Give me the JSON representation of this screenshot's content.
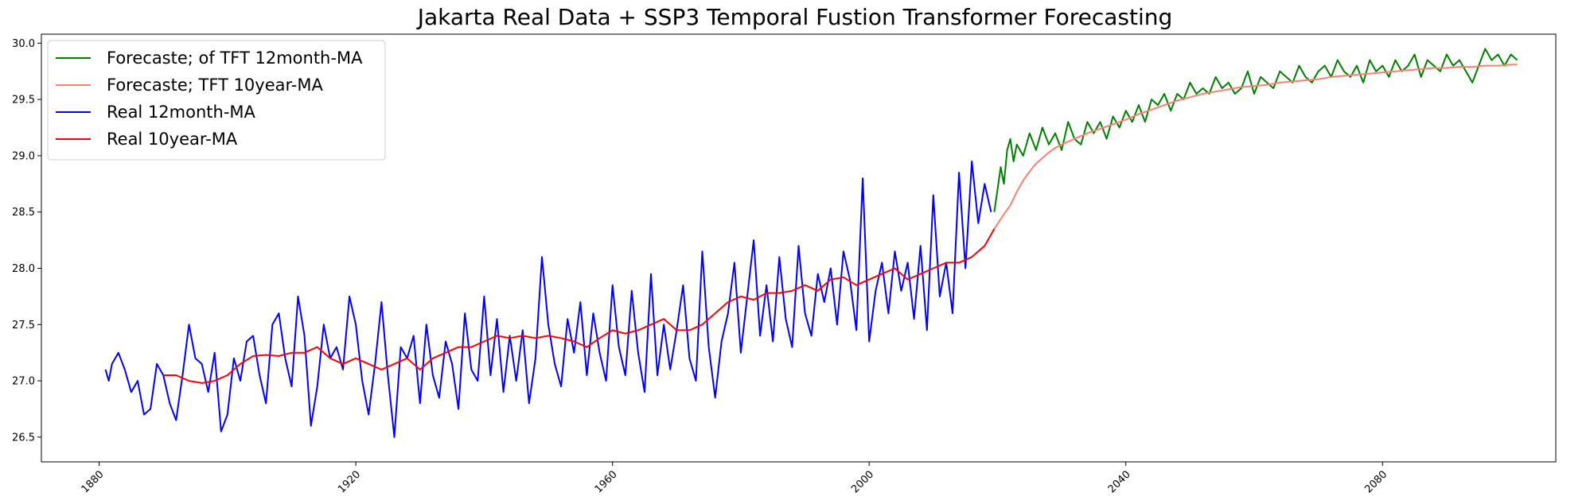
{
  "chart_data": {
    "type": "line",
    "title": "Jakarta Real Data + SSP3 Temporal Fustion Transformer Forecasting",
    "xlabel": "",
    "ylabel": "",
    "xlim": [
      1871,
      2107
    ],
    "ylim": [
      26.28,
      30.08
    ],
    "xticks": [
      1880,
      1920,
      1960,
      2000,
      2040,
      2080
    ],
    "xtick_labels": [
      "1880",
      "1920",
      "1960",
      "2000",
      "2040",
      "2080"
    ],
    "yticks": [
      26.5,
      27.0,
      27.5,
      28.0,
      28.5,
      29.0,
      29.5,
      30.0
    ],
    "ytick_labels": [
      "26.5",
      "27.0",
      "27.5",
      "28.0",
      "28.5",
      "29.0",
      "29.5",
      "30.0"
    ],
    "grid": false,
    "legend_position": "upper-left",
    "series": [
      {
        "name": "Forecaste; of TFT 12month-MA",
        "color": "#008000",
        "x": [
          2019.5,
          2020.0,
          2020.5,
          2021.0,
          2021.5,
          2022.0,
          2022.5,
          2023.0,
          2024.0,
          2025.0,
          2026.0,
          2027.0,
          2028.0,
          2029.0,
          2030.0,
          2031.0,
          2032.0,
          2033.0,
          2034.0,
          2035.0,
          2036.0,
          2037.0,
          2038.0,
          2039.0,
          2040.0,
          2041.0,
          2042.0,
          2043.0,
          2044.0,
          2045.0,
          2046.0,
          2047.0,
          2048.0,
          2049.0,
          2050.0,
          2051.0,
          2052.0,
          2053.0,
          2054.0,
          2055.0,
          2056.0,
          2057.0,
          2058.0,
          2059.0,
          2060.0,
          2061.0,
          2062.0,
          2063.0,
          2064.0,
          2065.0,
          2066.0,
          2067.0,
          2068.0,
          2069.0,
          2070.0,
          2071.0,
          2072.0,
          2073.0,
          2074.0,
          2075.0,
          2076.0,
          2077.0,
          2078.0,
          2079.0,
          2080.0,
          2081.0,
          2082.0,
          2083.0,
          2084.0,
          2085.0,
          2086.0,
          2087.0,
          2088.0,
          2089.0,
          2090.0,
          2091.0,
          2092.0,
          2093.0,
          2094.0,
          2095.0,
          2096.0,
          2097.0,
          2098.0,
          2099.0,
          2100.0,
          2101.0
        ],
        "y": [
          28.5,
          28.7,
          28.9,
          28.75,
          29.05,
          29.15,
          28.95,
          29.1,
          29.0,
          29.2,
          29.05,
          29.25,
          29.1,
          29.2,
          29.05,
          29.3,
          29.15,
          29.1,
          29.3,
          29.2,
          29.3,
          29.15,
          29.35,
          29.25,
          29.4,
          29.3,
          29.45,
          29.3,
          29.5,
          29.45,
          29.55,
          29.4,
          29.55,
          29.5,
          29.65,
          29.55,
          29.6,
          29.55,
          29.7,
          29.6,
          29.65,
          29.55,
          29.6,
          29.75,
          29.55,
          29.7,
          29.65,
          29.6,
          29.75,
          29.7,
          29.65,
          29.8,
          29.7,
          29.65,
          29.75,
          29.8,
          29.7,
          29.85,
          29.75,
          29.7,
          29.8,
          29.65,
          29.85,
          29.75,
          29.8,
          29.7,
          29.85,
          29.75,
          29.8,
          29.9,
          29.7,
          29.85,
          29.8,
          29.75,
          29.9,
          29.8,
          29.85,
          29.75,
          29.65,
          29.8,
          29.95,
          29.85,
          29.9,
          29.8,
          29.9,
          29.85
        ]
      },
      {
        "name": "Forecaste; TFT 10year-MA",
        "color": "#fa8072",
        "x": [
          2019.5,
          2021.0,
          2022.0,
          2023.0,
          2024.0,
          2025.0,
          2026.0,
          2027.0,
          2028.0,
          2029.0,
          2030.0,
          2032.0,
          2034.0,
          2036.0,
          2038.0,
          2040.0,
          2042.0,
          2044.0,
          2046.0,
          2048.0,
          2050.0,
          2052.0,
          2054.0,
          2056.0,
          2058.0,
          2060.0,
          2062.0,
          2064.0,
          2066.0,
          2068.0,
          2070.0,
          2072.0,
          2074.0,
          2076.0,
          2078.0,
          2080.0,
          2082.0,
          2084.0,
          2086.0,
          2088.0,
          2090.0,
          2092.0,
          2094.0,
          2096.0,
          2098.0,
          2100.0,
          2101.0
        ],
        "y": [
          28.35,
          28.48,
          28.56,
          28.68,
          28.78,
          28.86,
          28.93,
          28.98,
          29.03,
          29.07,
          29.1,
          29.15,
          29.2,
          29.24,
          29.28,
          29.32,
          29.37,
          29.41,
          29.45,
          29.49,
          29.52,
          29.55,
          29.57,
          29.59,
          29.61,
          29.62,
          29.63,
          29.65,
          29.66,
          29.67,
          29.68,
          29.7,
          29.71,
          29.72,
          29.73,
          29.74,
          29.75,
          29.76,
          29.77,
          29.78,
          29.78,
          29.79,
          29.79,
          29.8,
          29.8,
          29.81,
          29.81
        ]
      },
      {
        "name": "Real 12month-MA",
        "color": "#0000ff",
        "x": [
          1881.0,
          1881.5,
          1882.0,
          1883.0,
          1884.0,
          1885.0,
          1886.0,
          1887.0,
          1888.0,
          1889.0,
          1890.0,
          1891.0,
          1892.0,
          1893.0,
          1894.0,
          1895.0,
          1896.0,
          1897.0,
          1898.0,
          1899.0,
          1900.0,
          1901.0,
          1902.0,
          1903.0,
          1904.0,
          1905.0,
          1906.0,
          1907.0,
          1908.0,
          1909.0,
          1910.0,
          1911.0,
          1912.0,
          1913.0,
          1914.0,
          1915.0,
          1916.0,
          1917.0,
          1918.0,
          1919.0,
          1920.0,
          1921.0,
          1922.0,
          1923.0,
          1924.0,
          1925.0,
          1926.0,
          1927.0,
          1928.0,
          1929.0,
          1930.0,
          1931.0,
          1932.0,
          1933.0,
          1934.0,
          1935.0,
          1936.0,
          1937.0,
          1938.0,
          1939.0,
          1940.0,
          1941.0,
          1942.0,
          1943.0,
          1944.0,
          1945.0,
          1946.0,
          1947.0,
          1948.0,
          1949.0,
          1950.0,
          1951.0,
          1952.0,
          1953.0,
          1954.0,
          1955.0,
          1956.0,
          1957.0,
          1958.0,
          1959.0,
          1960.0,
          1961.0,
          1962.0,
          1963.0,
          1964.0,
          1965.0,
          1966.0,
          1967.0,
          1968.0,
          1969.0,
          1970.0,
          1971.0,
          1972.0,
          1973.0,
          1974.0,
          1975.0,
          1976.0,
          1977.0,
          1978.0,
          1979.0,
          1980.0,
          1981.0,
          1982.0,
          1983.0,
          1984.0,
          1985.0,
          1986.0,
          1987.0,
          1988.0,
          1989.0,
          1990.0,
          1991.0,
          1992.0,
          1993.0,
          1994.0,
          1995.0,
          1996.0,
          1997.0,
          1998.0,
          1999.0,
          2000.0,
          2001.0,
          2002.0,
          2003.0,
          2004.0,
          2005.0,
          2006.0,
          2007.0,
          2008.0,
          2009.0,
          2010.0,
          2011.0,
          2012.0,
          2013.0,
          2014.0,
          2015.0,
          2016.0,
          2017.0,
          2018.0,
          2019.0
        ],
        "y": [
          27.1,
          27.0,
          27.15,
          27.25,
          27.1,
          26.9,
          27.0,
          26.7,
          26.75,
          27.15,
          27.05,
          26.8,
          26.65,
          27.05,
          27.5,
          27.2,
          27.15,
          26.9,
          27.25,
          26.55,
          26.7,
          27.2,
          27.0,
          27.35,
          27.4,
          27.05,
          26.8,
          27.5,
          27.6,
          27.2,
          26.95,
          27.75,
          27.4,
          26.6,
          26.95,
          27.5,
          27.2,
          27.3,
          27.1,
          27.75,
          27.5,
          27.0,
          26.7,
          27.15,
          27.7,
          27.05,
          26.5,
          27.3,
          27.2,
          27.4,
          26.8,
          27.5,
          27.05,
          26.85,
          27.35,
          27.15,
          26.75,
          27.6,
          27.1,
          27.0,
          27.75,
          27.05,
          27.55,
          26.9,
          27.4,
          27.0,
          27.45,
          26.8,
          27.2,
          28.1,
          27.5,
          27.15,
          26.95,
          27.55,
          27.25,
          27.7,
          27.05,
          27.6,
          27.25,
          27.0,
          27.85,
          27.3,
          27.05,
          27.8,
          27.25,
          26.9,
          27.95,
          27.05,
          27.5,
          27.1,
          27.45,
          27.85,
          27.2,
          27.0,
          28.15,
          27.3,
          26.85,
          27.35,
          27.6,
          28.05,
          27.25,
          27.75,
          28.25,
          27.4,
          27.85,
          27.35,
          28.1,
          27.55,
          27.3,
          28.2,
          27.6,
          27.4,
          27.95,
          27.7,
          28.0,
          27.5,
          28.15,
          27.9,
          27.45,
          28.8,
          27.35,
          27.8,
          28.05,
          27.6,
          28.15,
          27.8,
          28.05,
          27.55,
          28.2,
          27.45,
          28.65,
          27.75,
          28.05,
          27.6,
          28.85,
          28.0,
          28.95,
          28.4,
          28.75,
          28.5
        ]
      },
      {
        "name": "Real 10year-MA",
        "color": "#ff0000",
        "x": [
          1890.0,
          1892.0,
          1894.0,
          1896.0,
          1898.0,
          1900.0,
          1902.0,
          1904.0,
          1906.0,
          1908.0,
          1910.0,
          1912.0,
          1914.0,
          1916.0,
          1918.0,
          1920.0,
          1922.0,
          1924.0,
          1926.0,
          1928.0,
          1930.0,
          1932.0,
          1934.0,
          1936.0,
          1938.0,
          1940.0,
          1942.0,
          1944.0,
          1946.0,
          1948.0,
          1950.0,
          1952.0,
          1954.0,
          1956.0,
          1958.0,
          1960.0,
          1962.0,
          1964.0,
          1966.0,
          1968.0,
          1970.0,
          1972.0,
          1974.0,
          1976.0,
          1978.0,
          1980.0,
          1982.0,
          1984.0,
          1986.0,
          1988.0,
          1990.0,
          1992.0,
          1994.0,
          1996.0,
          1998.0,
          2000.0,
          2002.0,
          2004.0,
          2006.0,
          2008.0,
          2010.0,
          2012.0,
          2014.0,
          2016.0,
          2018.0,
          2019.5
        ],
        "y": [
          27.05,
          27.05,
          27.0,
          26.98,
          27.0,
          27.05,
          27.15,
          27.22,
          27.23,
          27.22,
          27.25,
          27.25,
          27.3,
          27.2,
          27.15,
          27.2,
          27.15,
          27.1,
          27.15,
          27.2,
          27.1,
          27.2,
          27.25,
          27.3,
          27.3,
          27.35,
          27.4,
          27.38,
          27.4,
          27.38,
          27.4,
          27.38,
          27.35,
          27.3,
          27.38,
          27.45,
          27.42,
          27.45,
          27.5,
          27.55,
          27.45,
          27.45,
          27.5,
          27.6,
          27.7,
          27.75,
          27.72,
          27.78,
          27.78,
          27.8,
          27.85,
          27.8,
          27.9,
          27.92,
          27.85,
          27.9,
          27.95,
          28.0,
          27.9,
          27.95,
          28.0,
          28.05,
          28.05,
          28.1,
          28.2,
          28.35
        ]
      }
    ]
  }
}
